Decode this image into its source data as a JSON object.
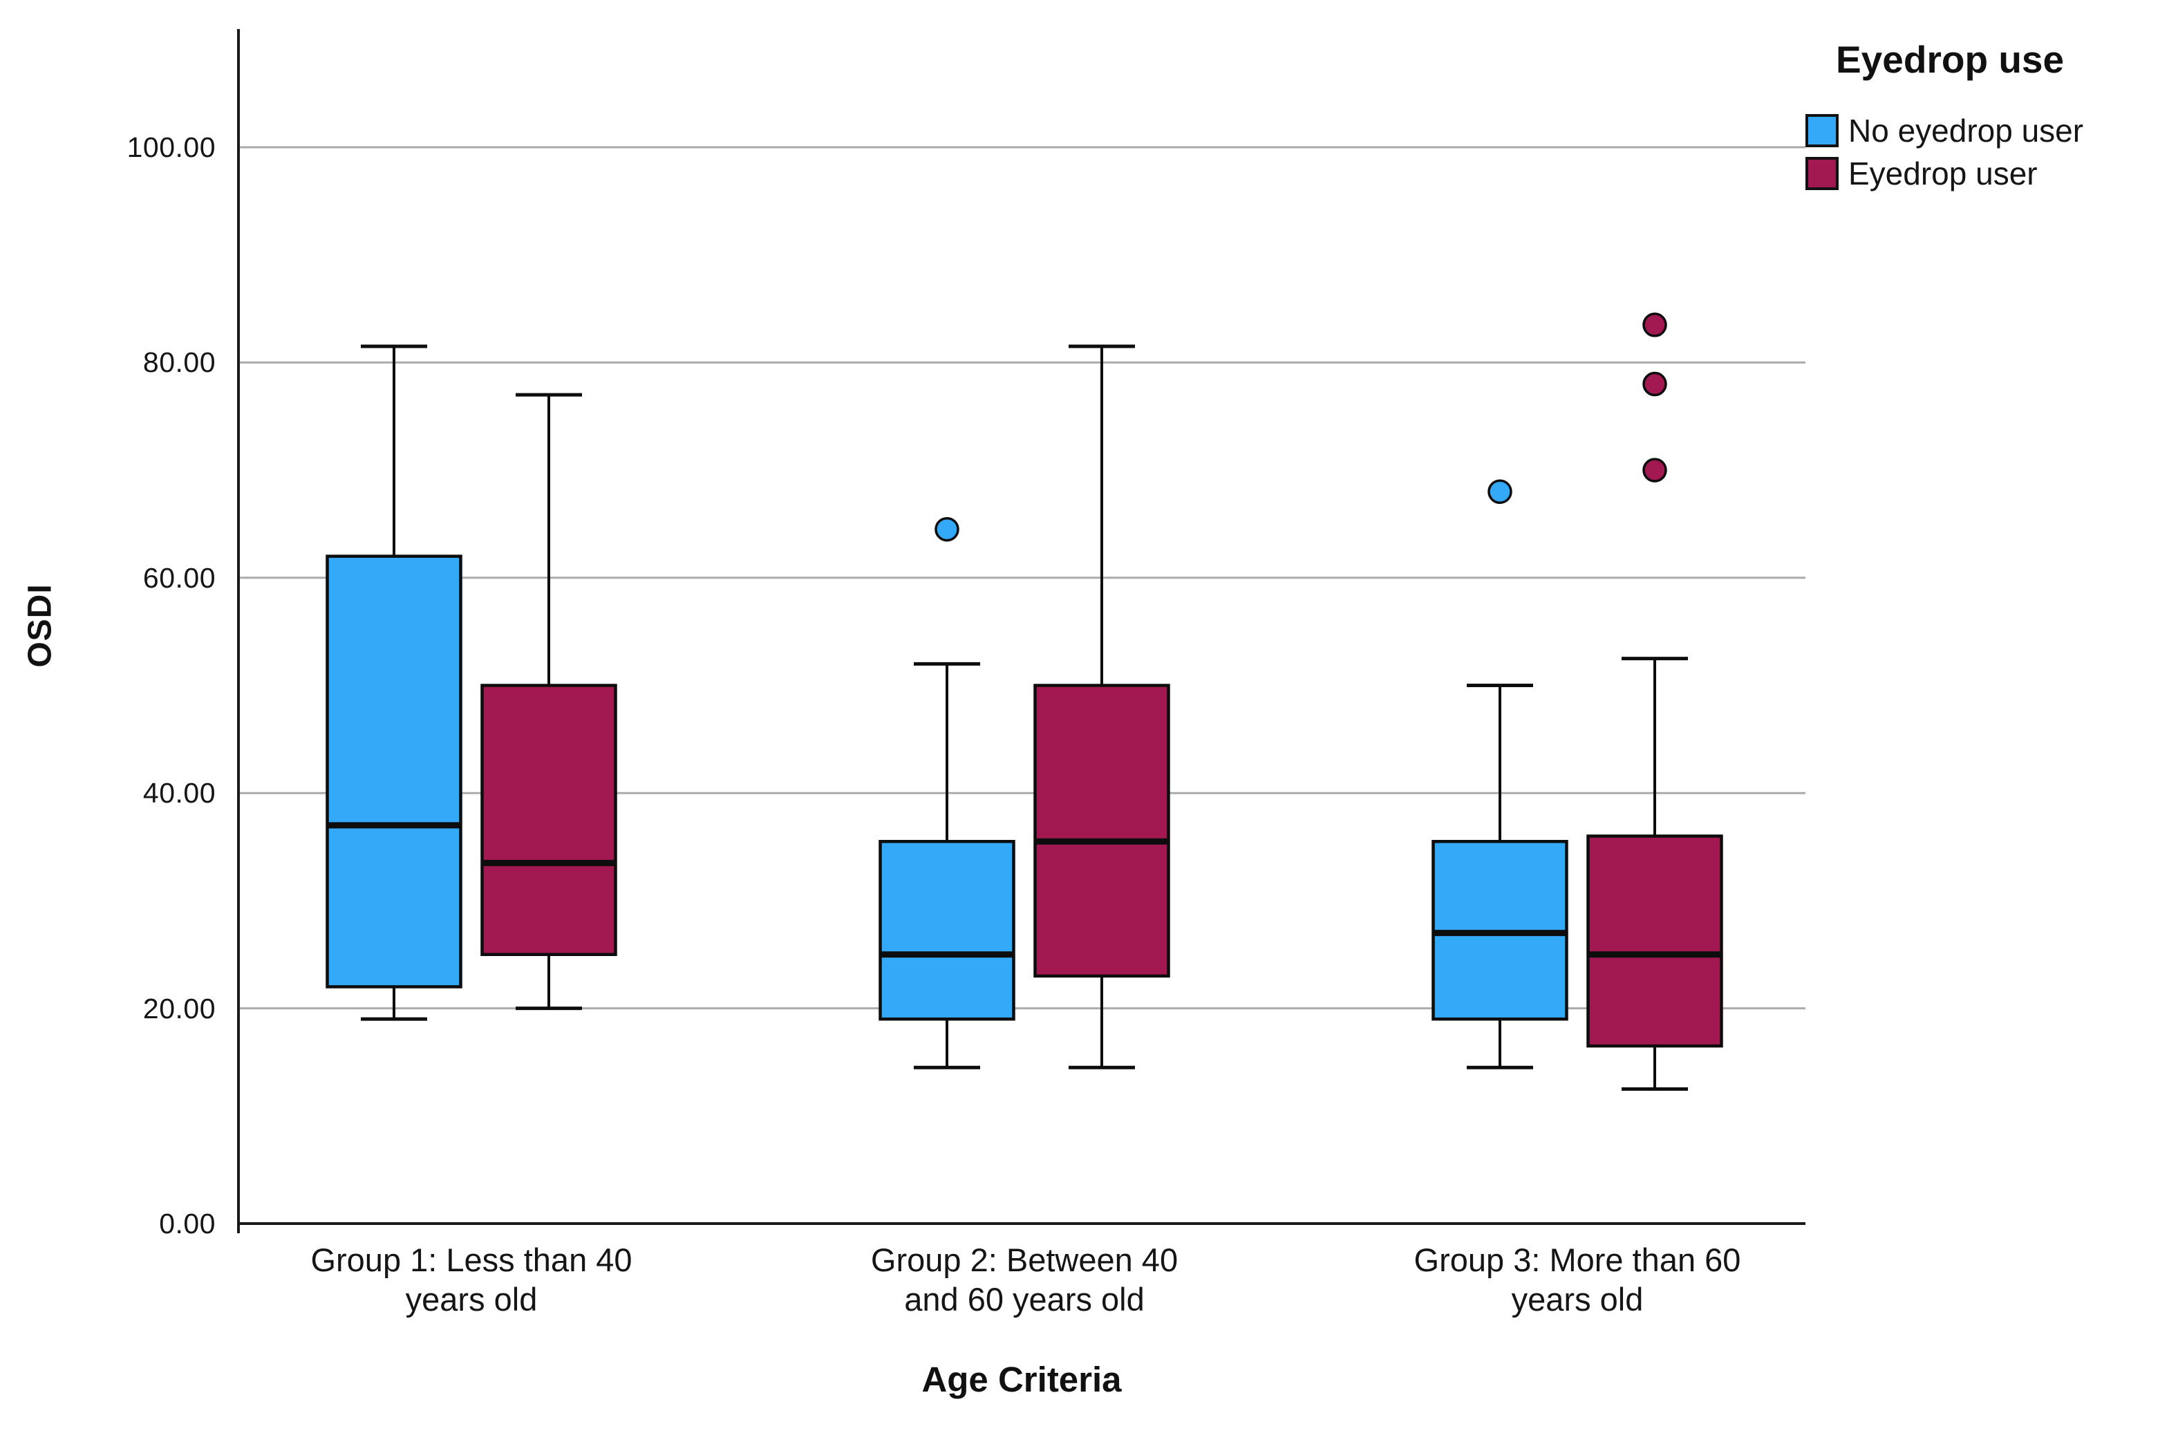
{
  "y_axis": {
    "title": "OSDI",
    "ticks": [
      {
        "label": "0.00",
        "value": 0
      },
      {
        "label": "20.00",
        "value": 20
      },
      {
        "label": "40.00",
        "value": 40
      },
      {
        "label": "60.00",
        "value": 60
      },
      {
        "label": "80.00",
        "value": 80
      },
      {
        "label": "100.00",
        "value": 100
      }
    ]
  },
  "x_axis": {
    "title": "Age Criteria",
    "categories": [
      {
        "label": "Group 1: Less than 40 years old",
        "lines": [
          "Group 1: Less than 40",
          "years old"
        ]
      },
      {
        "label": "Group 2: Between 40 and 60 years old",
        "lines": [
          "Group 2: Between 40",
          "and 60 years old"
        ]
      },
      {
        "label": "Group 3: More than 60 years old",
        "lines": [
          "Group 3: More than 60",
          "years old"
        ]
      }
    ]
  },
  "legend": {
    "title": "Eyedrop use",
    "items": [
      {
        "label": "No eyedrop user",
        "color": "#33A9F7"
      },
      {
        "label": "Eyedrop user",
        "color": "#A21952"
      }
    ]
  },
  "colors": {
    "grid": "#ABABAB",
    "axis": "#1A1A1A",
    "box_outline": "#0D0D0D",
    "background": "#FFFFFF"
  },
  "chart_data": {
    "type": "boxplot",
    "title": "",
    "xlabel": "Age Criteria",
    "ylabel": "OSDI",
    "ylim": [
      0,
      111
    ],
    "grid": true,
    "legend_position": "top-right",
    "categories": [
      "Group 1: Less than 40 years old",
      "Group 2: Between 40 and 60 years old",
      "Group 3: More than 60 years old"
    ],
    "series": [
      {
        "name": "No eyedrop user",
        "color": "#33A9F7",
        "boxes": [
          {
            "whisker_low": 19,
            "q1": 22,
            "median": 37,
            "q3": 62,
            "whisker_high": 81.5,
            "outliers": []
          },
          {
            "whisker_low": 14.5,
            "q1": 19,
            "median": 25,
            "q3": 35.5,
            "whisker_high": 52,
            "outliers": [
              64.5
            ]
          },
          {
            "whisker_low": 14.5,
            "q1": 19,
            "median": 27,
            "q3": 35.5,
            "whisker_high": 50,
            "outliers": [
              68
            ]
          }
        ]
      },
      {
        "name": "Eyedrop user",
        "color": "#A21952",
        "boxes": [
          {
            "whisker_low": 20,
            "q1": 25,
            "median": 33.5,
            "q3": 50,
            "whisker_high": 77,
            "outliers": []
          },
          {
            "whisker_low": 14.5,
            "q1": 23,
            "median": 35.5,
            "q3": 50,
            "whisker_high": 81.5,
            "outliers": []
          },
          {
            "whisker_low": 12.5,
            "q1": 16.5,
            "median": 25,
            "q3": 36,
            "whisker_high": 52.5,
            "outliers": [
              70,
              78,
              83.5
            ]
          }
        ]
      }
    ]
  }
}
